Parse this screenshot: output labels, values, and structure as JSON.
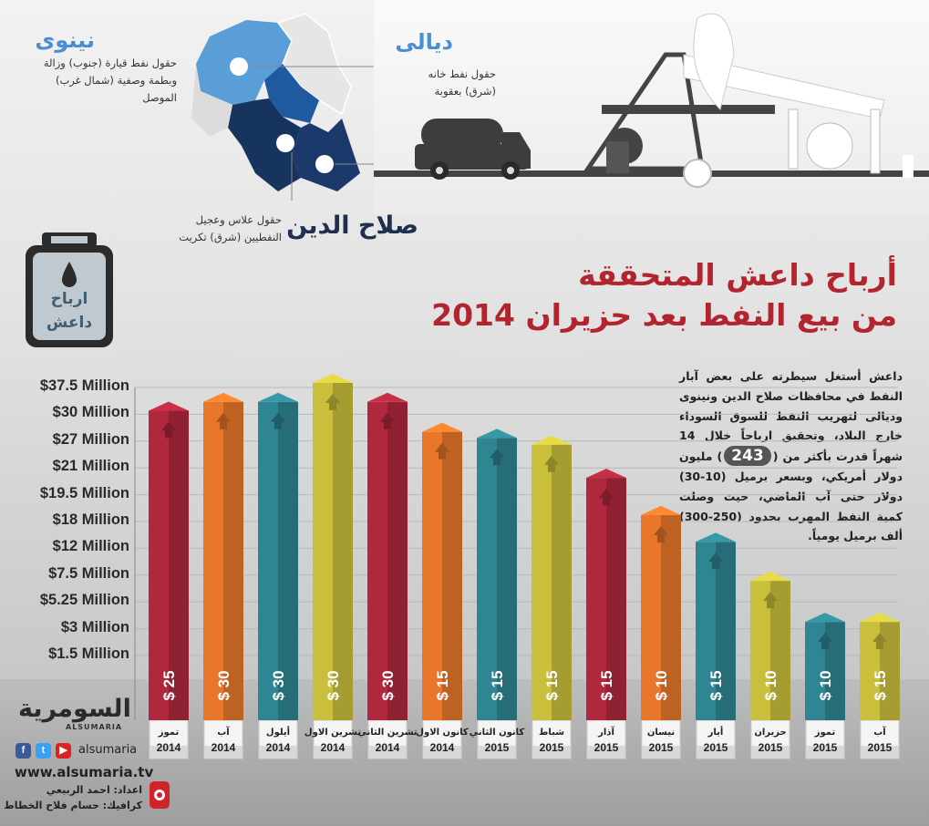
{
  "header": {
    "title_line1": "أرباح داعش المتحققة",
    "title_line2": "من بيع النفط بعد حزيران 2014"
  },
  "regions": [
    {
      "name": "نينوى",
      "desc_lines": [
        "حقول نفط قيارة (جنوب) وزالة",
        "وبطمة وصفية (شمال غرب)",
        "الموصل"
      ]
    },
    {
      "name": "ديالى",
      "desc_lines": [
        "حقول نفط خانه",
        "(شرق) بعقوبة"
      ]
    },
    {
      "name": "صلاح الدين",
      "desc_lines": [
        "حقول علاس وعجيل",
        "النفطيين (شرق) تكريت"
      ]
    }
  ],
  "jerrycan": {
    "line1": "ارباح",
    "line2": "داعش"
  },
  "description": {
    "before": "داعش أستغل سيطرته على بعض آبار النفط في محافظات صلاح الدين ونينوى وديالى لتهريب النفط للسوق السوداء خارج البلاد، وتحقيق ارباحاً خلال 14 شهراً قدرت بأكثر من (",
    "number": "243",
    "after": ") مليون دولار أمريكي، وبسعر برميل (10-30) دولار حتى آب الماضي، حيث وصلت كمية النفط المهرب بحدود (250-300) ألف برميل يومياً."
  },
  "branding": {
    "logo_ar": "السومرية",
    "logo_en": "ALSUMARIA",
    "handle": "alsumaria",
    "website": "www.alsumaria.tv",
    "prepared_by": "اعداد: احمد الربيعي",
    "graphic_by": "كرافيك: حسام فلاح الخطاط",
    "social_icons": [
      "youtube-icon",
      "twitter-icon",
      "facebook-icon"
    ]
  },
  "chart_data": {
    "type": "bar",
    "title": "أرباح داعش المتحققة من بيع النفط بعد حزيران 2014",
    "y_tick_labels": [
      "$37.5 Million",
      "$30 Million",
      "$27 Million",
      "$21 Million",
      "$19.5 Million",
      "$18 Million",
      "$12 Million",
      "$7.5 Million",
      "$5.25 Million",
      "$3 Million",
      "$1.5 Million"
    ],
    "categories": [
      {
        "month": "تموز",
        "year": "2014",
        "value_label": "$ 25",
        "color": "#b0283d"
      },
      {
        "month": "آب",
        "year": "2014",
        "value_label": "$ 30",
        "color": "#e8772b"
      },
      {
        "month": "أيلول",
        "year": "2014",
        "value_label": "$ 30",
        "color": "#2f8592"
      },
      {
        "month": "تشرين الاول",
        "year": "2014",
        "value_label": "$ 30",
        "color": "#c9bf3c"
      },
      {
        "month": "تشرين الثاني",
        "year": "2014",
        "value_label": "$ 30",
        "color": "#b0283d"
      },
      {
        "month": "كانون الاول",
        "year": "2014",
        "value_label": "$ 15",
        "color": "#e8772b"
      },
      {
        "month": "كانون الثاني",
        "year": "2015",
        "value_label": "$ 15",
        "color": "#2f8592"
      },
      {
        "month": "شباط",
        "year": "2015",
        "value_label": "$ 15",
        "color": "#c9bf3c"
      },
      {
        "month": "آذار",
        "year": "2015",
        "value_label": "$ 15",
        "color": "#b0283d"
      },
      {
        "month": "نيسان",
        "year": "2015",
        "value_label": "$ 10",
        "color": "#e8772b"
      },
      {
        "month": "أيار",
        "year": "2015",
        "value_label": "$ 15",
        "color": "#2f8592"
      },
      {
        "month": "حزيران",
        "year": "2015",
        "value_label": "$ 10",
        "color": "#c9bf3c"
      },
      {
        "month": "تموز",
        "year": "2015",
        "value_label": "$ 10",
        "color": "#2f8592"
      },
      {
        "month": "آب",
        "year": "2015",
        "value_label": "$ 15",
        "color": "#c9bf3c"
      }
    ],
    "values": [
      27,
      30,
      30,
      37.5,
      30,
      21,
      19.5,
      18,
      12,
      7.5,
      5.25,
      3,
      1.5,
      1.5
    ],
    "ylim": [
      0,
      37.5
    ],
    "grid": true
  }
}
